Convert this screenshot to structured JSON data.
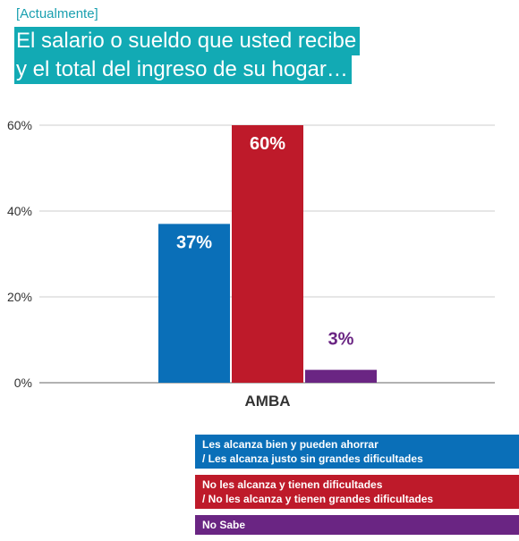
{
  "header": {
    "subtitle": "[Actualmente]",
    "title_lines": [
      "El salario o sueldo que usted recibe",
      "y el total del ingreso de su hogar…"
    ]
  },
  "legend": {
    "items": [
      {
        "lines": [
          "Les alcanza bien y pueden ahorrar",
          "/ Les alcanza justo sin grandes dificultades"
        ],
        "color": "#0a6fb8"
      },
      {
        "lines": [
          "No les alcanza y tienen dificultades",
          "/ No les alcanza y tienen grandes dificultades"
        ],
        "color": "#be1a2a"
      },
      {
        "lines": [
          "No Sabe"
        ],
        "color": "#6a2583"
      }
    ]
  },
  "chart_data": {
    "type": "bar",
    "categories": [
      "AMBA"
    ],
    "series": [
      {
        "name": "Les alcanza bien y pueden ahorrar / Les alcanza justo sin grandes dificultades",
        "values": [
          37
        ],
        "label": "37%",
        "color": "#0a6fb8"
      },
      {
        "name": "No les alcanza y tienen dificultades / No les alcanza y tienen grandes dificultades",
        "values": [
          60
        ],
        "label": "60%",
        "color": "#be1a2a"
      },
      {
        "name": "No Sabe",
        "values": [
          3
        ],
        "label": "3%",
        "color": "#6a2583"
      }
    ],
    "yticks": [
      0,
      20,
      40,
      60
    ],
    "ytick_labels": [
      "0%",
      "20%",
      "40%",
      "60%"
    ],
    "ylim": [
      0,
      60
    ],
    "grid": true,
    "legend_position": "bottom-right"
  }
}
